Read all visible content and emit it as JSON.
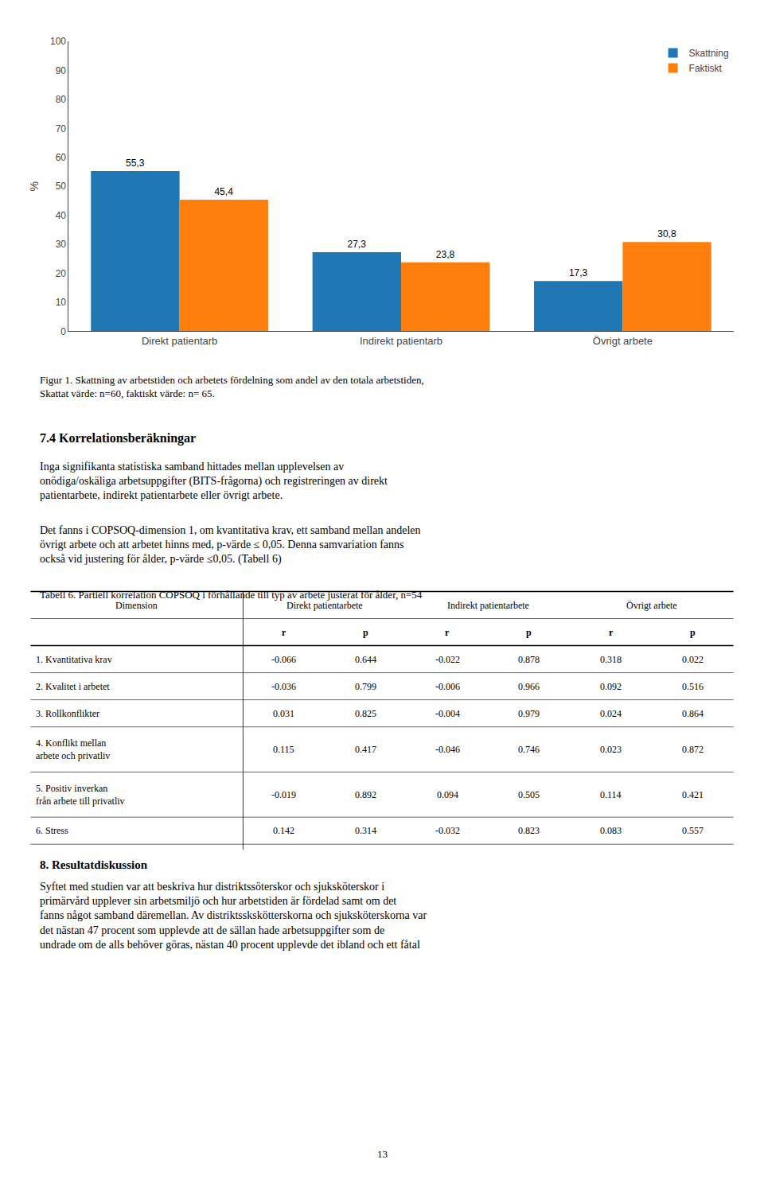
{
  "chart_data": [
    {
      "type": "bar",
      "categories": [
        "Direkt patientarb",
        "Indirekt patientarb",
        "Övrigt arbete"
      ],
      "series": [
        {
          "name": "Skattning",
          "values": [
            55.3,
            27.3,
            17.3
          ],
          "value_labels": [
            "55,3",
            "27,3",
            "17,3"
          ]
        },
        {
          "name": "Faktiskt",
          "values": [
            45.4,
            23.8,
            30.8
          ],
          "value_labels": [
            "45,4",
            "23,8",
            "30,8"
          ]
        }
      ],
      "y_label": "%",
      "ylim": [
        0,
        100
      ],
      "yticks": [
        0,
        10,
        20,
        30,
        40,
        50,
        60,
        70,
        80,
        90,
        100
      ],
      "grid": false,
      "legend": "upper right",
      "data_labels": true,
      "annotations": [
        "Figur 1. Skattning av arbetstiden och arbetets fördelning som andel av den totala arbetstiden,\nSkattat värde: n=60, faktiskt värde: n= 65.",
        "7.4 Korrelationsberäkningar",
        "Inga signifikanta statistiska samband hittades mellan upplevelsen av\nonödiga/oskäliga arbetsuppgifter (BITS-frågorna) och registreringen av direkt\npatientarbete, indirekt patientarbete eller övrigt arbete.",
        "Det fanns i COPSOQ-dimension 1, om kvantitativa krav, ett samband mellan andelen\növrigt arbete och att arbetet hinns med, p-värde ≤ 0,05. Denna samvariation fanns\nockså vid justering för ålder, p-värde ≤0,05. (Tabell 6)",
        "8. Resultatdiskussion",
        "Syftet med studien var att beskriva hur distriktssöterskor och sjuksköterskor i\nprimärvård upplever sin arbetsmiljö och hur arbetstiden är fördelad samt om det\nfanns något samband däremellan. Av distriktsskskötterskorna och sjuksköterskorna var\ndet nästan 47 procent som upplevde att de sällan hade arbetsuppgifter som de\nundrade om de alls behöver göras, nästan 40 procent upplevde det ibland och ett fåtal",
        "13"
      ]
    },
    {
      "type": "table",
      "title": "Tabell 6. Partiell korrelation COPSOQ i förhållande till typ av arbete justerat för ålder, n=54",
      "header": [
        "Dimension",
        "Direkt patientarbete",
        "Indirekt patientarbete",
        "Övrigt arbete"
      ],
      "subheader": [
        "r",
        "p",
        "r",
        "p",
        "r",
        "p"
      ],
      "categories": [
        "1. Kvantitativa krav",
        "2. Kvalitet i arbetet",
        "3. Rollkonflikter",
        "4. Konflikt mellan\narbete och privatliv",
        "5. Positiv inverkan\nfrån arbete till privatliv",
        "6. Stress"
      ],
      "rows": [
        [
          -0.066,
          0.644,
          -0.022,
          0.878,
          0.318,
          0.022
        ],
        [
          -0.036,
          0.799,
          -0.006,
          0.966,
          0.092,
          0.516
        ],
        [
          0.031,
          0.825,
          -0.004,
          0.979,
          0.024,
          0.864
        ],
        [
          0.115,
          0.417,
          -0.046,
          0.746,
          0.023,
          0.872
        ],
        [
          -0.019,
          0.892,
          0.094,
          0.505,
          0.114,
          0.421
        ],
        [
          0.142,
          0.314,
          -0.032,
          0.823,
          0.083,
          0.557
        ]
      ]
    }
  ]
}
